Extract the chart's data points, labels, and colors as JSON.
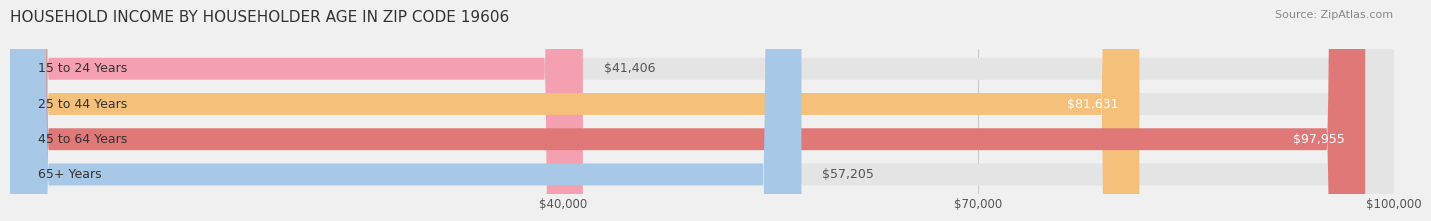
{
  "title": "HOUSEHOLD INCOME BY HOUSEHOLDER AGE IN ZIP CODE 19606",
  "source": "Source: ZipAtlas.com",
  "categories": [
    "15 to 24 Years",
    "25 to 44 Years",
    "45 to 64 Years",
    "65+ Years"
  ],
  "values": [
    41406,
    81631,
    97955,
    57205
  ],
  "bar_colors": [
    "#f4a0b0",
    "#f5c07a",
    "#e07878",
    "#a8c8e8"
  ],
  "label_colors": [
    "#555555",
    "#ffffff",
    "#ffffff",
    "#555555"
  ],
  "xmin": 0,
  "xmax": 100000,
  "xticks": [
    40000,
    70000,
    100000
  ],
  "xtick_labels": [
    "$40,000",
    "$70,000",
    "$100,000"
  ],
  "background_color": "#f0f0f0",
  "bar_bg_color": "#e4e4e4",
  "title_fontsize": 11,
  "label_fontsize": 9,
  "value_labels": [
    "$41,406",
    "$81,631",
    "$97,955",
    "$57,205"
  ],
  "value_inside": [
    false,
    true,
    true,
    false
  ]
}
